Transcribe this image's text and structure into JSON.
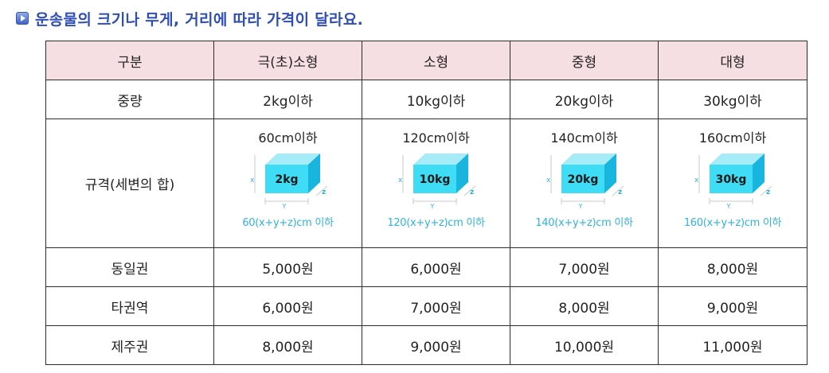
{
  "heading": "운송물의 크기나 무게, 거리에 따라 가격이 달라요.",
  "table": {
    "headers": [
      "구분",
      "극(초)소형",
      "소형",
      "중형",
      "대형"
    ],
    "weight_row": {
      "label": "중량",
      "values": [
        "2kg이하",
        "10kg이하",
        "20kg이하",
        "30kg이하"
      ]
    },
    "size_row": {
      "label": "규격(세변의 합)",
      "cells": [
        {
          "limit": "60cm이하",
          "box_weight": "2kg",
          "formula": "60(x+y+z)cm 이하"
        },
        {
          "limit": "120cm이하",
          "box_weight": "10kg",
          "formula": "120(x+y+z)cm 이하"
        },
        {
          "limit": "140cm이하",
          "box_weight": "20kg",
          "formula": "140(x+y+z)cm 이하"
        },
        {
          "limit": "160cm이하",
          "box_weight": "30kg",
          "formula": "160(x+y+z)cm 이하"
        }
      ],
      "axis_labels": {
        "x": "x",
        "y": "Y",
        "z": "z"
      }
    },
    "price_rows": [
      {
        "label": "동일권",
        "values": [
          "5,000원",
          "6,000원",
          "7,000원",
          "8,000원"
        ]
      },
      {
        "label": "타권역",
        "values": [
          "6,000원",
          "7,000원",
          "8,000원",
          "9,000원"
        ]
      },
      {
        "label": "제주권",
        "values": [
          "8,000원",
          "9,000원",
          "10,000원",
          "11,000원"
        ]
      }
    ]
  },
  "colors": {
    "heading": "#2f4fb5",
    "header_bg": "#f6dfe2",
    "cube_front": "#3fdcf5",
    "cube_top": "#a6ecf8",
    "cube_side": "#18b6df",
    "formula_text": "#2fb3dc"
  },
  "icons": {
    "bullet": "blue-play-bullet-icon",
    "box": "cube-box-icon"
  }
}
